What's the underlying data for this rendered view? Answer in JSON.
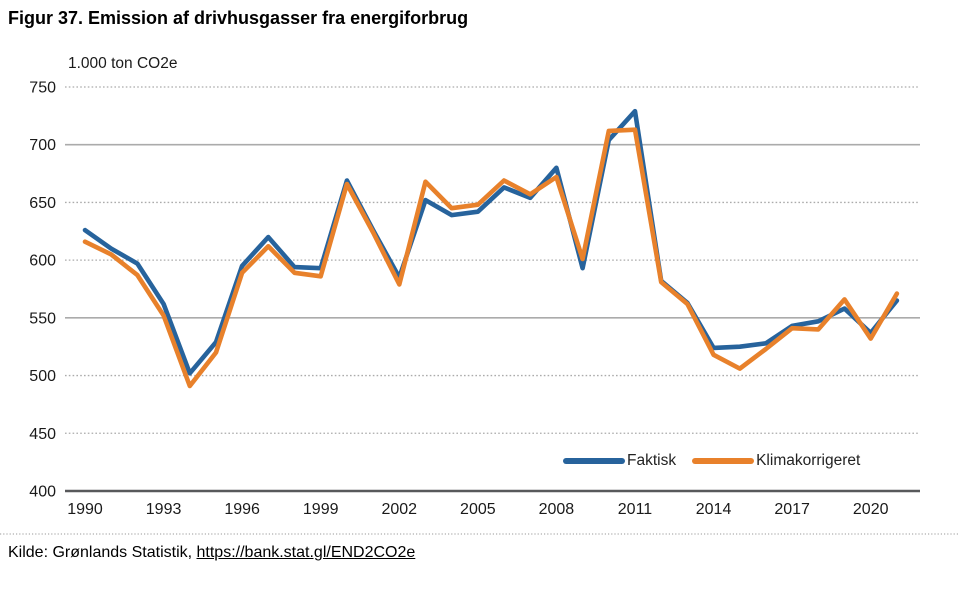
{
  "title": "Figur 37. Emission af drivhusgasser fra energiforbrug",
  "source": {
    "prefix": "Kilde: Grønlands Statistik, ",
    "link": "https://bank.stat.gl/END2CO2e"
  },
  "colors": {
    "faktisk": "#27639C",
    "klimakorrigeret": "#E8812B",
    "grid": "#ABABAB",
    "axis": "#58595B",
    "tick_text": "#1A1A1A"
  },
  "chart_data": {
    "type": "line",
    "title": "Figur 37. Emission af drivhusgasser fra energiforbrug",
    "ylabel": "1.000 ton CO2e",
    "xlabel": "",
    "ylim": [
      400,
      750
    ],
    "yticks": [
      400,
      450,
      500,
      550,
      600,
      650,
      700,
      750
    ],
    "solid_gridlines": [
      550,
      700
    ],
    "xticks": [
      1990,
      1993,
      1996,
      1999,
      2002,
      2005,
      2008,
      2011,
      2014,
      2017,
      2020
    ],
    "grid": "horizontal",
    "legend_position": "inside-bottom-right",
    "x": [
      1990,
      1991,
      1992,
      1993,
      1994,
      1995,
      1996,
      1997,
      1998,
      1999,
      2000,
      2001,
      2002,
      2003,
      2004,
      2005,
      2006,
      2007,
      2008,
      2009,
      2010,
      2011,
      2012,
      2013,
      2014,
      2015,
      2016,
      2017,
      2018,
      2019,
      2020,
      2021
    ],
    "series": [
      {
        "name": "Faktisk",
        "color": "#27639C",
        "values": [
          626,
          610,
          597,
          562,
          502,
          529,
          595,
          620,
          594,
          593,
          669,
          626,
          585,
          652,
          639,
          642,
          663,
          654,
          680,
          593,
          704,
          729,
          582,
          563,
          524,
          525,
          528,
          543,
          547,
          558,
          537,
          565
        ]
      },
      {
        "name": "Klimakorrigeret",
        "color": "#E8812B",
        "values": [
          616,
          605,
          587,
          552,
          491,
          520,
          589,
          612,
          589,
          586,
          666,
          624,
          579,
          668,
          645,
          648,
          669,
          657,
          672,
          601,
          712,
          713,
          581,
          562,
          518,
          506,
          523,
          541,
          540,
          566,
          532,
          571
        ]
      }
    ]
  }
}
